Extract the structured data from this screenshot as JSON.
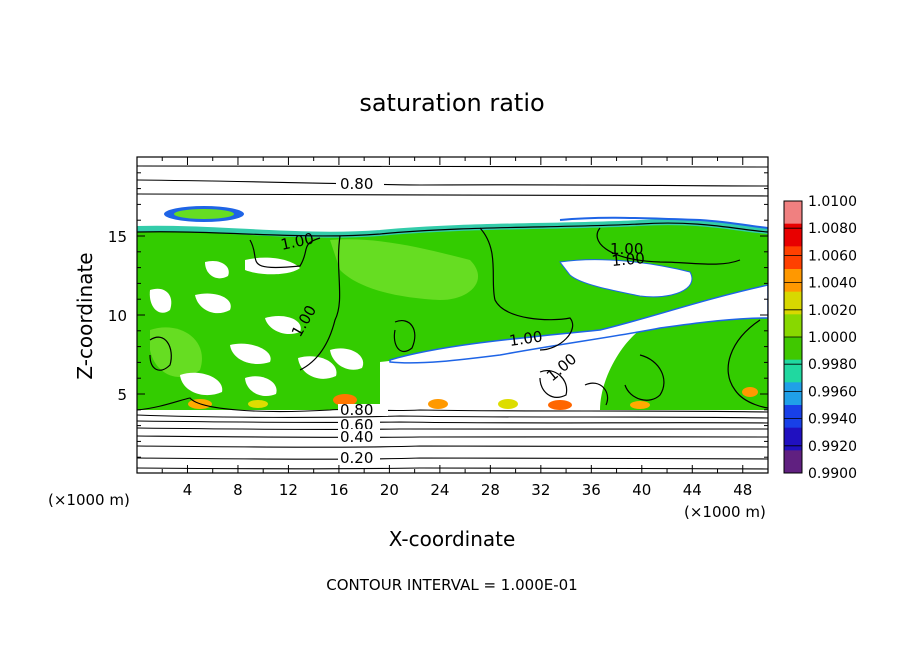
{
  "chart_data": {
    "type": "contour",
    "title": "saturation ratio",
    "xlabel": "X-coordinate",
    "ylabel": "Z-coordinate",
    "x_unit": "(×1000 m)",
    "x_ticks": [
      "4",
      "8",
      "12",
      "16",
      "20",
      "24",
      "28",
      "32",
      "36",
      "40",
      "44",
      "48"
    ],
    "x_tick_values": [
      4,
      8,
      12,
      16,
      20,
      24,
      28,
      32,
      36,
      40,
      44,
      48
    ],
    "y_ticks": [
      "5",
      "10",
      "15"
    ],
    "y_tick_values": [
      5,
      10,
      15
    ],
    "xlim": [
      0,
      50
    ],
    "ylim": [
      0,
      20
    ],
    "contour_labels": [
      "0.80",
      "1.00",
      "1.00",
      "1.00",
      "1.00",
      "1.00",
      "1.00",
      "0.80",
      "0.60",
      "0.40",
      "0.20"
    ],
    "contour_interval_text": "CONTOUR INTERVAL = 1.000E-01",
    "colorbar": {
      "labels": [
        "1.0100",
        "1.0080",
        "1.0060",
        "1.0040",
        "1.0020",
        "1.0000",
        "0.9980",
        "0.9960",
        "0.9940",
        "0.9920",
        "0.9900"
      ],
      "colors": [
        "#f08080",
        "#e80000",
        "#ff4000",
        "#ff9800",
        "#d8d800",
        "#88d800",
        "#40c800",
        "#20d8a0",
        "#20a0e8",
        "#1840e8",
        "#2010c0",
        "#602080"
      ]
    },
    "fill_colors": {
      "green": "#33cc00",
      "light_green": "#66dd22",
      "cyan": "#33ccaa",
      "blue": "#1e64e6",
      "white": "#ffffff",
      "orange": "#ff7700",
      "yellow": "#dddd00"
    }
  }
}
